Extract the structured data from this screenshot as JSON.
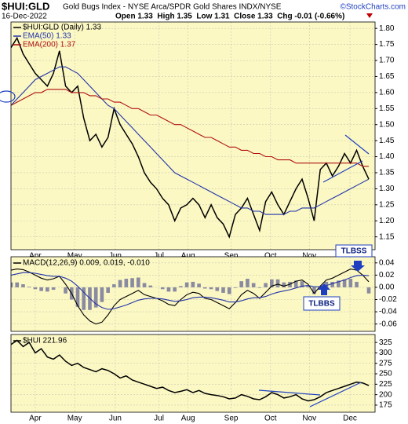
{
  "header": {
    "symbol": "$HUI:GLD",
    "name": "Gold Bugs Index - NYSE Arca/SPDR Gold Shares INDX/NYSE",
    "source": "©StockCharts.com",
    "date": "16-Dec-2022",
    "quote": "Open 1.33  High 1.35  Low 1.31  Close 1.33  Chg -0.01 (-0.66%)"
  },
  "chart_data": [
    {
      "type": "line",
      "legend": true,
      "xticks": [
        {
          "value": 4,
          "label": "Apr"
        },
        {
          "value": 10.5,
          "label": "May"
        },
        {
          "value": 17.2,
          "label": "Jun"
        },
        {
          "value": 24.4,
          "label": "Jul"
        },
        {
          "value": 29.2,
          "label": "Aug"
        },
        {
          "value": 36.3,
          "label": "Sep"
        },
        {
          "value": 42.8,
          "label": "Oct"
        },
        {
          "value": 49.2,
          "label": "Nov"
        },
        {
          "value": 55.9,
          "label": "Dec"
        }
      ],
      "ylim": [
        1.11,
        1.82
      ],
      "yticks": [
        {
          "value": 1.8,
          "label": "1.80"
        },
        1.75,
        {
          "value": 1.7,
          "label": "1.70"
        },
        1.65,
        {
          "value": 1.6,
          "label": "1.60"
        },
        1.55,
        {
          "value": 1.5,
          "label": "1.50"
        },
        1.45,
        {
          "value": 1.4,
          "label": "1.40"
        },
        1.35,
        {
          "value": 1.3,
          "label": "1.30"
        },
        1.25,
        {
          "value": 1.2,
          "label": "1.20"
        },
        1.15
      ],
      "series": [
        {
          "name": "$HUI:GLD (Daily) 1.33",
          "color": "#000000",
          "values": [
            1.74,
            1.77,
            1.72,
            1.69,
            1.66,
            1.64,
            1.62,
            1.66,
            1.73,
            1.62,
            1.6,
            1.62,
            1.52,
            1.45,
            1.47,
            1.43,
            1.46,
            1.55,
            1.5,
            1.47,
            1.44,
            1.4,
            1.35,
            1.32,
            1.3,
            1.27,
            1.25,
            1.2,
            1.24,
            1.25,
            1.27,
            1.25,
            1.21,
            1.25,
            1.21,
            1.19,
            1.15,
            1.22,
            1.24,
            1.27,
            1.22,
            1.17,
            1.26,
            1.29,
            1.25,
            1.22,
            1.26,
            1.3,
            1.33,
            1.27,
            1.2,
            1.36,
            1.38,
            1.34,
            1.37,
            1.41,
            1.38,
            1.42,
            1.37,
            1.33
          ]
        },
        {
          "name": "EMA(50) 1.33",
          "color": "#2233aa",
          "values": [
            1.56,
            1.58,
            1.6,
            1.62,
            1.64,
            1.65,
            1.66,
            1.67,
            1.68,
            1.68,
            1.67,
            1.66,
            1.64,
            1.62,
            1.6,
            1.58,
            1.56,
            1.55,
            1.53,
            1.51,
            1.49,
            1.47,
            1.45,
            1.43,
            1.41,
            1.39,
            1.37,
            1.35,
            1.34,
            1.33,
            1.32,
            1.31,
            1.3,
            1.29,
            1.28,
            1.27,
            1.26,
            1.25,
            1.24,
            1.24,
            1.23,
            1.23,
            1.22,
            1.22,
            1.22,
            1.22,
            1.23,
            1.23,
            1.24,
            1.24,
            1.24,
            1.25,
            1.26,
            1.27,
            1.28,
            1.29,
            1.3,
            1.31,
            1.32,
            1.33
          ]
        },
        {
          "name": "EMA(200) 1.37",
          "color": "#b01010",
          "values": [
            1.56,
            1.57,
            1.58,
            1.59,
            1.6,
            1.6,
            1.61,
            1.61,
            1.61,
            1.61,
            1.6,
            1.6,
            1.6,
            1.59,
            1.59,
            1.58,
            1.58,
            1.57,
            1.57,
            1.56,
            1.55,
            1.55,
            1.54,
            1.53,
            1.53,
            1.52,
            1.51,
            1.5,
            1.5,
            1.49,
            1.48,
            1.47,
            1.46,
            1.46,
            1.45,
            1.44,
            1.43,
            1.43,
            1.42,
            1.42,
            1.41,
            1.41,
            1.4,
            1.4,
            1.39,
            1.39,
            1.39,
            1.38,
            1.38,
            1.38,
            1.38,
            1.38,
            1.38,
            1.38,
            1.38,
            1.38,
            1.38,
            1.38,
            1.37,
            1.37
          ]
        }
      ]
    },
    {
      "type": "line",
      "title": "MACD(12,26,9) 0.009, 0.019, -0.010",
      "annotations": [
        "TLBSS",
        "TLBBS"
      ],
      "ylim": [
        -0.072,
        0.05
      ],
      "yticks": [
        0.04,
        0.02,
        {
          "value": 0,
          "label": "0.00"
        },
        -0.02,
        -0.04,
        -0.06
      ],
      "series": [
        {
          "type": "bar",
          "color": "#8a8aa0",
          "values": [
            0.008,
            0.008,
            0.005,
            0.001,
            -0.003,
            -0.006,
            -0.007,
            -0.004,
            0.0,
            -0.01,
            -0.02,
            -0.032,
            -0.037,
            -0.037,
            -0.033,
            -0.024,
            -0.009,
            0.005,
            0.012,
            0.014,
            0.015,
            0.016,
            0.007,
            0.003,
            0.0,
            -0.003,
            -0.007,
            -0.007,
            0.002,
            0.008,
            0.009,
            0.006,
            -0.002,
            -0.003,
            -0.006,
            -0.009,
            -0.011,
            -0.001,
            0.01,
            0.014,
            0.007,
            -0.001,
            0.007,
            0.013,
            0.013,
            0.008,
            0.009,
            0.011,
            0.01,
            0.002,
            -0.011,
            0.001,
            0.009,
            0.009,
            0.011,
            0.013,
            0.014,
            0.009,
            0.0,
            -0.01
          ]
        },
        {
          "color": "#000000",
          "values": [
            0.028,
            0.03,
            0.029,
            0.025,
            0.02,
            0.015,
            0.012,
            0.014,
            0.018,
            0.005,
            -0.01,
            -0.03,
            -0.045,
            -0.055,
            -0.06,
            -0.057,
            -0.045,
            -0.03,
            -0.02,
            -0.015,
            -0.01,
            -0.005,
            -0.012,
            -0.015,
            -0.018,
            -0.022,
            -0.028,
            -0.03,
            -0.02,
            -0.012,
            -0.008,
            -0.01,
            -0.018,
            -0.02,
            -0.025,
            -0.03,
            -0.035,
            -0.025,
            -0.012,
            -0.005,
            -0.01,
            -0.018,
            -0.008,
            0.002,
            0.005,
            0.002,
            0.005,
            0.01,
            0.012,
            0.005,
            -0.01,
            0.002,
            0.012,
            0.015,
            0.02,
            0.025,
            0.03,
            0.028,
            0.02,
            0.009
          ]
        },
        {
          "color": "#2233aa",
          "values": [
            0.02,
            0.022,
            0.024,
            0.024,
            0.023,
            0.021,
            0.019,
            0.018,
            0.018,
            0.015,
            0.01,
            0.002,
            -0.008,
            -0.018,
            -0.027,
            -0.033,
            -0.036,
            -0.035,
            -0.032,
            -0.029,
            -0.025,
            -0.021,
            -0.019,
            -0.018,
            -0.018,
            -0.019,
            -0.021,
            -0.023,
            -0.022,
            -0.02,
            -0.017,
            -0.016,
            -0.016,
            -0.017,
            -0.019,
            -0.021,
            -0.024,
            -0.024,
            -0.022,
            -0.019,
            -0.017,
            -0.017,
            -0.015,
            -0.011,
            -0.008,
            -0.006,
            -0.004,
            -0.001,
            0.002,
            0.003,
            0.001,
            0.001,
            0.003,
            0.006,
            0.009,
            0.012,
            0.016,
            0.019,
            0.02,
            0.019
          ]
        }
      ]
    },
    {
      "type": "line",
      "title": "$HUI 221.96",
      "xticks": [
        {
          "value": 4,
          "label": "Apr"
        },
        {
          "value": 10.5,
          "label": "May"
        },
        {
          "value": 17.2,
          "label": "Jun"
        },
        {
          "value": 24.4,
          "label": "Jul"
        },
        {
          "value": 29.2,
          "label": "Aug"
        },
        {
          "value": 36.3,
          "label": "Sep"
        },
        {
          "value": 42.8,
          "label": "Oct"
        },
        {
          "value": 49.2,
          "label": "Nov"
        },
        {
          "value": 55.9,
          "label": "Dec"
        }
      ],
      "ylim": [
        158,
        344
      ],
      "yticks": [
        325,
        300,
        275,
        250,
        225,
        200,
        175
      ],
      "series": [
        {
          "color": "#000000",
          "values": [
            320,
            330,
            315,
            325,
            300,
            310,
            290,
            285,
            295,
            280,
            270,
            275,
            265,
            260,
            255,
            262,
            258,
            250,
            240,
            245,
            235,
            230,
            225,
            220,
            215,
            218,
            210,
            205,
            208,
            212,
            205,
            210,
            203,
            200,
            198,
            195,
            190,
            192,
            200,
            196,
            190,
            188,
            195,
            205,
            200,
            192,
            195,
            200,
            190,
            185,
            188,
            195,
            205,
            210,
            215,
            220,
            225,
            230,
            228,
            221.96
          ]
        }
      ]
    }
  ]
}
